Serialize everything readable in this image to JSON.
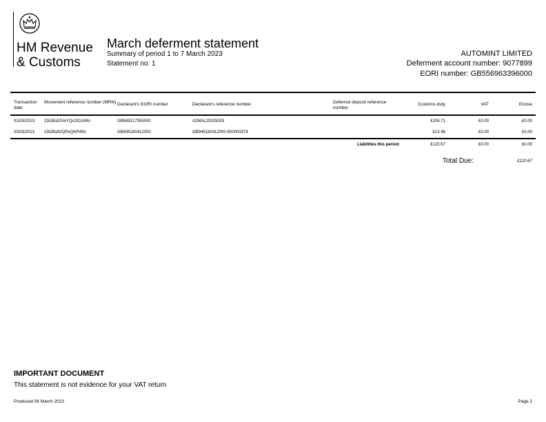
{
  "logo": {
    "icon": "crown-icon",
    "line1": "HM Revenue",
    "line2": "& Customs"
  },
  "header": {
    "title": "March deferment statement",
    "summary": "Summary of period 1 to 7 March 2023",
    "statement_no": "Statement no: 1",
    "company": "AUTOMINT LIMITED",
    "account": "Deferment account number: 9077899",
    "eori": "EORI number: GB556963396000"
  },
  "table": {
    "columns": [
      "Transaction date",
      "Movement reference number (MRN)",
      "Declarant's EORI number",
      "Declarant's reference number",
      "Deferred deposit reference number",
      "Customs duty",
      "VAT",
      "Excise"
    ],
    "rows": [
      [
        "01/03/2023",
        "23GBs8JVeYQsOOzARs",
        "GB945217055000",
        "A2MAL20025003",
        "",
        "£106.71",
        "£0.00",
        "£0.00"
      ],
      [
        "03/03/2023",
        "23GBs8VQPeQKP4Rz",
        "GB945180412000",
        "GB945180412000-500003374",
        "",
        "£13.96",
        "£0.00",
        "£0.00"
      ]
    ],
    "liabilities_label": "Liabilities this period:",
    "liabilities": [
      "£120.67",
      "£0.00",
      "£0.00"
    ],
    "total_label": "Total Due:",
    "total": "£120.67"
  },
  "footer": {
    "important": "IMPORTANT DOCUMENT",
    "note": "This statement is not evidence for your VAT return",
    "produced": "Produced 08 March 2023",
    "page": "Page 2"
  }
}
